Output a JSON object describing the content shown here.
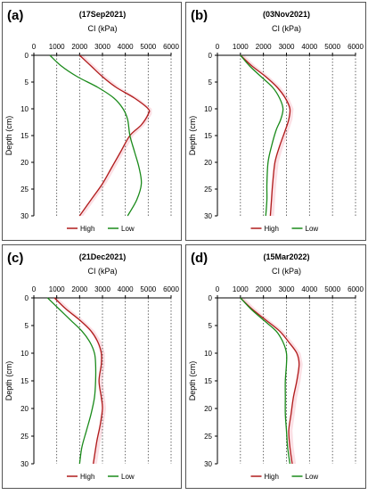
{
  "figure": {
    "border_color": "#555555",
    "grid_color": "#444444",
    "band_color": "#f8c6cf",
    "high_color": "#b01c1c",
    "low_color": "#1a8a1a"
  },
  "chart_data": [
    {
      "type": "line",
      "panel": "(a)",
      "title": "(17Sep2021)",
      "xlabel": "CI (kPa)",
      "ylabel": "Depth (cm)",
      "xlim": [
        0,
        6000
      ],
      "ylim": [
        0,
        30
      ],
      "y_inverted": true,
      "x_axis_position": "top",
      "xticks": [
        0,
        1000,
        2000,
        3000,
        4000,
        5000,
        6000
      ],
      "yticks": [
        0,
        5,
        10,
        15,
        20,
        25,
        30
      ],
      "grid": "vertical-dotted",
      "legend": "bottom",
      "series": [
        {
          "name": "High",
          "points": [
            [
              2000,
              0
            ],
            [
              2500,
              2
            ],
            [
              3000,
              4
            ],
            [
              3600,
              6
            ],
            [
              4400,
              8
            ],
            [
              5000,
              10
            ],
            [
              5000,
              11
            ],
            [
              4700,
              13
            ],
            [
              4200,
              15
            ],
            [
              3800,
              18
            ],
            [
              3400,
              21
            ],
            [
              3000,
              24
            ],
            [
              2500,
              27
            ],
            [
              2000,
              30
            ]
          ]
        },
        {
          "name": "Low",
          "points": [
            [
              700,
              0
            ],
            [
              1200,
              2
            ],
            [
              1900,
              4
            ],
            [
              2800,
              6
            ],
            [
              3500,
              8
            ],
            [
              3900,
              10
            ],
            [
              4100,
              12
            ],
            [
              4200,
              15
            ],
            [
              4400,
              18
            ],
            [
              4600,
              21
            ],
            [
              4700,
              24
            ],
            [
              4500,
              27
            ],
            [
              4100,
              30
            ]
          ]
        }
      ]
    },
    {
      "type": "line",
      "panel": "(b)",
      "title": "(03Nov2021)",
      "xlabel": "CI (kPa)",
      "ylabel": "Depth (cm)",
      "xlim": [
        0,
        6000
      ],
      "ylim": [
        0,
        30
      ],
      "y_inverted": true,
      "x_axis_position": "top",
      "xticks": [
        0,
        1000,
        2000,
        3000,
        4000,
        5000,
        6000
      ],
      "yticks": [
        0,
        5,
        10,
        15,
        20,
        25,
        30
      ],
      "grid": "vertical-dotted",
      "legend": "bottom",
      "series": [
        {
          "name": "High",
          "points": [
            [
              1000,
              0
            ],
            [
              1500,
              2
            ],
            [
              2100,
              4
            ],
            [
              2600,
              6
            ],
            [
              2950,
              8
            ],
            [
              3150,
              10
            ],
            [
              3100,
              12
            ],
            [
              2950,
              14
            ],
            [
              2700,
              17
            ],
            [
              2500,
              20
            ],
            [
              2400,
              24
            ],
            [
              2350,
              27
            ],
            [
              2300,
              30
            ]
          ]
        },
        {
          "name": "Low",
          "points": [
            [
              1000,
              0
            ],
            [
              1400,
              2
            ],
            [
              1900,
              4
            ],
            [
              2400,
              6
            ],
            [
              2700,
              8
            ],
            [
              2850,
              10
            ],
            [
              2750,
              12
            ],
            [
              2550,
              14
            ],
            [
              2350,
              17
            ],
            [
              2200,
              20
            ],
            [
              2150,
              24
            ],
            [
              2150,
              27
            ],
            [
              2100,
              30
            ]
          ]
        }
      ]
    },
    {
      "type": "line",
      "panel": "(c)",
      "title": "(21Dec2021)",
      "xlabel": "CI (kPa)",
      "ylabel": "Depth (cm)",
      "xlim": [
        0,
        6000
      ],
      "ylim": [
        0,
        30
      ],
      "y_inverted": true,
      "x_axis_position": "top",
      "xticks": [
        0,
        1000,
        2000,
        3000,
        4000,
        5000,
        6000
      ],
      "yticks": [
        0,
        5,
        10,
        15,
        20,
        25,
        30
      ],
      "grid": "vertical-dotted",
      "legend": "bottom",
      "series": [
        {
          "name": "High",
          "points": [
            [
              900,
              0
            ],
            [
              1400,
              2
            ],
            [
              2000,
              4
            ],
            [
              2500,
              6
            ],
            [
              2800,
              8
            ],
            [
              2950,
              10
            ],
            [
              2950,
              12
            ],
            [
              2850,
              15
            ],
            [
              2950,
              18
            ],
            [
              3000,
              20
            ],
            [
              2900,
              23
            ],
            [
              2750,
              26
            ],
            [
              2600,
              30
            ]
          ]
        },
        {
          "name": "Low",
          "points": [
            [
              600,
              0
            ],
            [
              1100,
              2
            ],
            [
              1600,
              4
            ],
            [
              2100,
              6
            ],
            [
              2450,
              8
            ],
            [
              2650,
              10
            ],
            [
              2700,
              12
            ],
            [
              2700,
              15
            ],
            [
              2650,
              18
            ],
            [
              2500,
              21
            ],
            [
              2300,
              24
            ],
            [
              2100,
              27
            ],
            [
              2000,
              30
            ]
          ]
        }
      ]
    },
    {
      "type": "line",
      "panel": "(d)",
      "title": "(15Mar2022)",
      "xlabel": "CI (kPa)",
      "ylabel": "Depth (cm)",
      "xlim": [
        0,
        6000
      ],
      "ylim": [
        0,
        30
      ],
      "y_inverted": true,
      "x_axis_position": "top",
      "xticks": [
        0,
        1000,
        2000,
        3000,
        4000,
        5000,
        6000
      ],
      "yticks": [
        0,
        5,
        10,
        15,
        20,
        25,
        30
      ],
      "grid": "vertical-dotted",
      "legend": "bottom",
      "series": [
        {
          "name": "High",
          "points": [
            [
              1000,
              0
            ],
            [
              1500,
              2
            ],
            [
              2100,
              4
            ],
            [
              2700,
              6
            ],
            [
              3100,
              8
            ],
            [
              3450,
              10
            ],
            [
              3550,
              12
            ],
            [
              3450,
              15
            ],
            [
              3300,
              18
            ],
            [
              3200,
              21
            ],
            [
              3100,
              24
            ],
            [
              3150,
              27
            ],
            [
              3250,
              30
            ]
          ]
        },
        {
          "name": "Low",
          "points": [
            [
              1000,
              0
            ],
            [
              1450,
              2
            ],
            [
              2000,
              4
            ],
            [
              2550,
              6
            ],
            [
              2850,
              8
            ],
            [
              3000,
              10
            ],
            [
              3000,
              12
            ],
            [
              2950,
              15
            ],
            [
              2950,
              18
            ],
            [
              2950,
              21
            ],
            [
              3000,
              24
            ],
            [
              3050,
              27
            ],
            [
              3150,
              30
            ]
          ]
        }
      ]
    }
  ]
}
